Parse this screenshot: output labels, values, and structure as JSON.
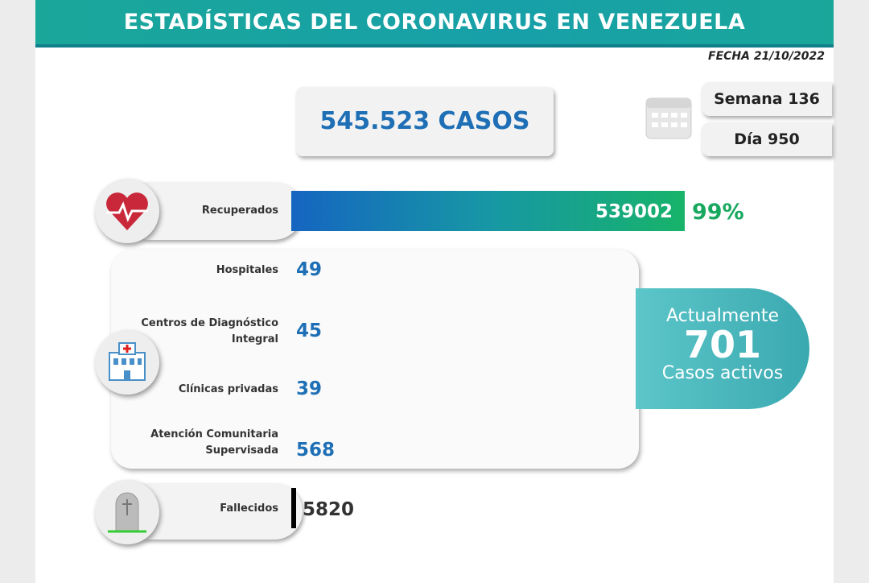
{
  "header": {
    "title": "ESTADÍSTICAS DEL CORONAVIRUS EN VENEZUELA",
    "date": "FECHA 21/10/2022"
  },
  "total_cases": "545.523 CASOS",
  "week": "Semana 136",
  "day": "Día 950",
  "recovered": {
    "label": "Recuperados",
    "value": 539002,
    "percent": "99%"
  },
  "locations": [
    {
      "label": "Hospitales",
      "value": 49
    },
    {
      "label": "Centros de Diagnóstico Integral",
      "value": 45
    },
    {
      "label": "Clínicas privadas",
      "value": 39
    },
    {
      "label": "Atención Comunitaria Supervisada",
      "value": 568
    }
  ],
  "active": {
    "top": "Actualmente",
    "value": 701,
    "bottom": "Casos activos"
  },
  "deaths": {
    "label": "Fallecidos",
    "value": 5820
  }
}
